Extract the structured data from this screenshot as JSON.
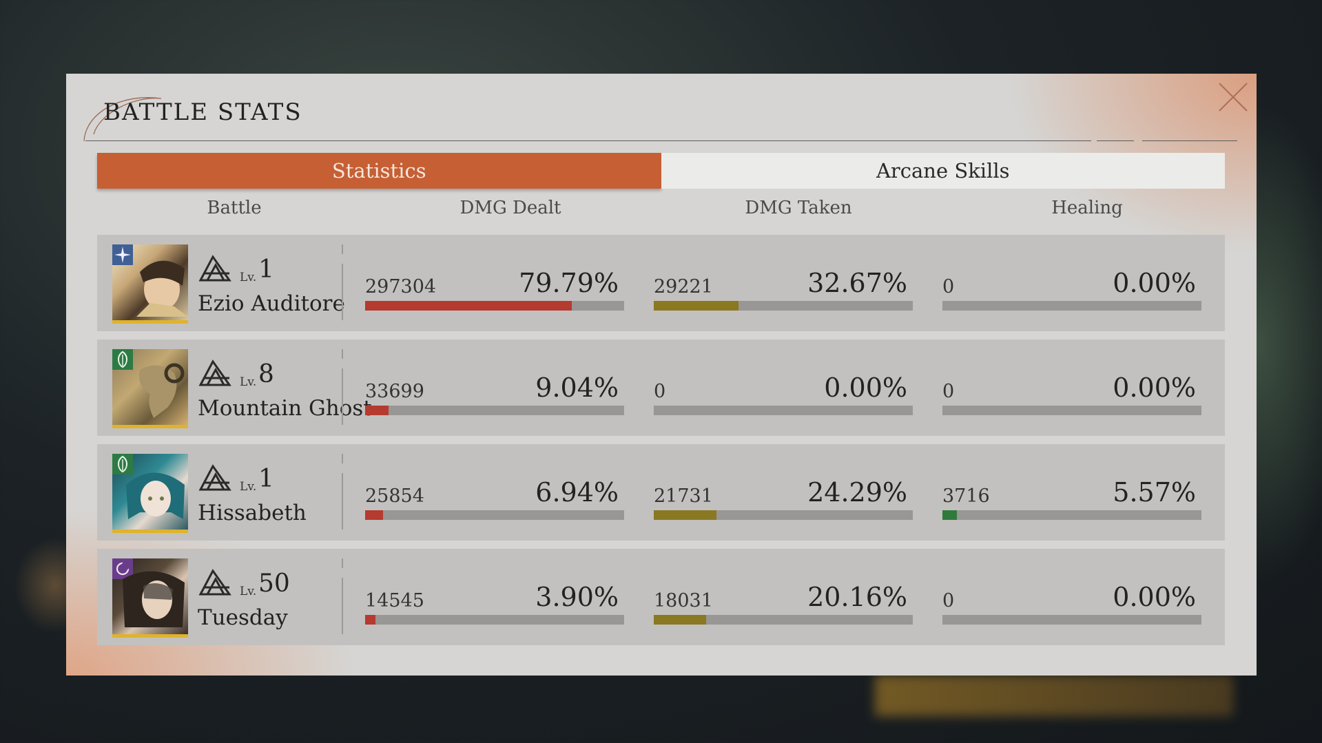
{
  "dialog": {
    "title": "BATTLE STATS",
    "tabs": [
      {
        "label": "Statistics",
        "active": true
      },
      {
        "label": "Arcane Skills",
        "active": false
      }
    ],
    "columns": [
      "Battle",
      "DMG Dealt",
      "DMG Taken",
      "Healing"
    ]
  },
  "colors": {
    "accent": "#c65f34",
    "dmg_dealt_fill": "#b53a30",
    "dmg_taken_fill": "#8a7822",
    "healing_fill": "#2f7a3a",
    "bar_track": "#989795"
  },
  "characters": [
    {
      "name": "Ezio Auditore",
      "level_prefix": "Lv.",
      "level": "1",
      "element_icon": "star-element-icon",
      "dmg_dealt": {
        "value": "297304",
        "percent": "79.79%",
        "fraction": 0.7979
      },
      "dmg_taken": {
        "value": "29221",
        "percent": "32.67%",
        "fraction": 0.3267
      },
      "healing": {
        "value": "0",
        "percent": "0.00%",
        "fraction": 0
      }
    },
    {
      "name": "Mountain Ghost",
      "level_prefix": "Lv.",
      "level": "8",
      "element_icon": "leaf-element-icon",
      "dmg_dealt": {
        "value": "33699",
        "percent": "9.04%",
        "fraction": 0.0904
      },
      "dmg_taken": {
        "value": "0",
        "percent": "0.00%",
        "fraction": 0
      },
      "healing": {
        "value": "0",
        "percent": "0.00%",
        "fraction": 0
      }
    },
    {
      "name": "Hissabeth",
      "level_prefix": "Lv.",
      "level": "1",
      "element_icon": "leaf-element-icon",
      "dmg_dealt": {
        "value": "25854",
        "percent": "6.94%",
        "fraction": 0.0694
      },
      "dmg_taken": {
        "value": "21731",
        "percent": "24.29%",
        "fraction": 0.2429
      },
      "healing": {
        "value": "3716",
        "percent": "5.57%",
        "fraction": 0.0557
      }
    },
    {
      "name": "Tuesday",
      "level_prefix": "Lv.",
      "level": "50",
      "element_icon": "moon-element-icon",
      "dmg_dealt": {
        "value": "14545",
        "percent": "3.90%",
        "fraction": 0.039
      },
      "dmg_taken": {
        "value": "18031",
        "percent": "20.16%",
        "fraction": 0.2016
      },
      "healing": {
        "value": "0",
        "percent": "0.00%",
        "fraction": 0
      }
    }
  ]
}
